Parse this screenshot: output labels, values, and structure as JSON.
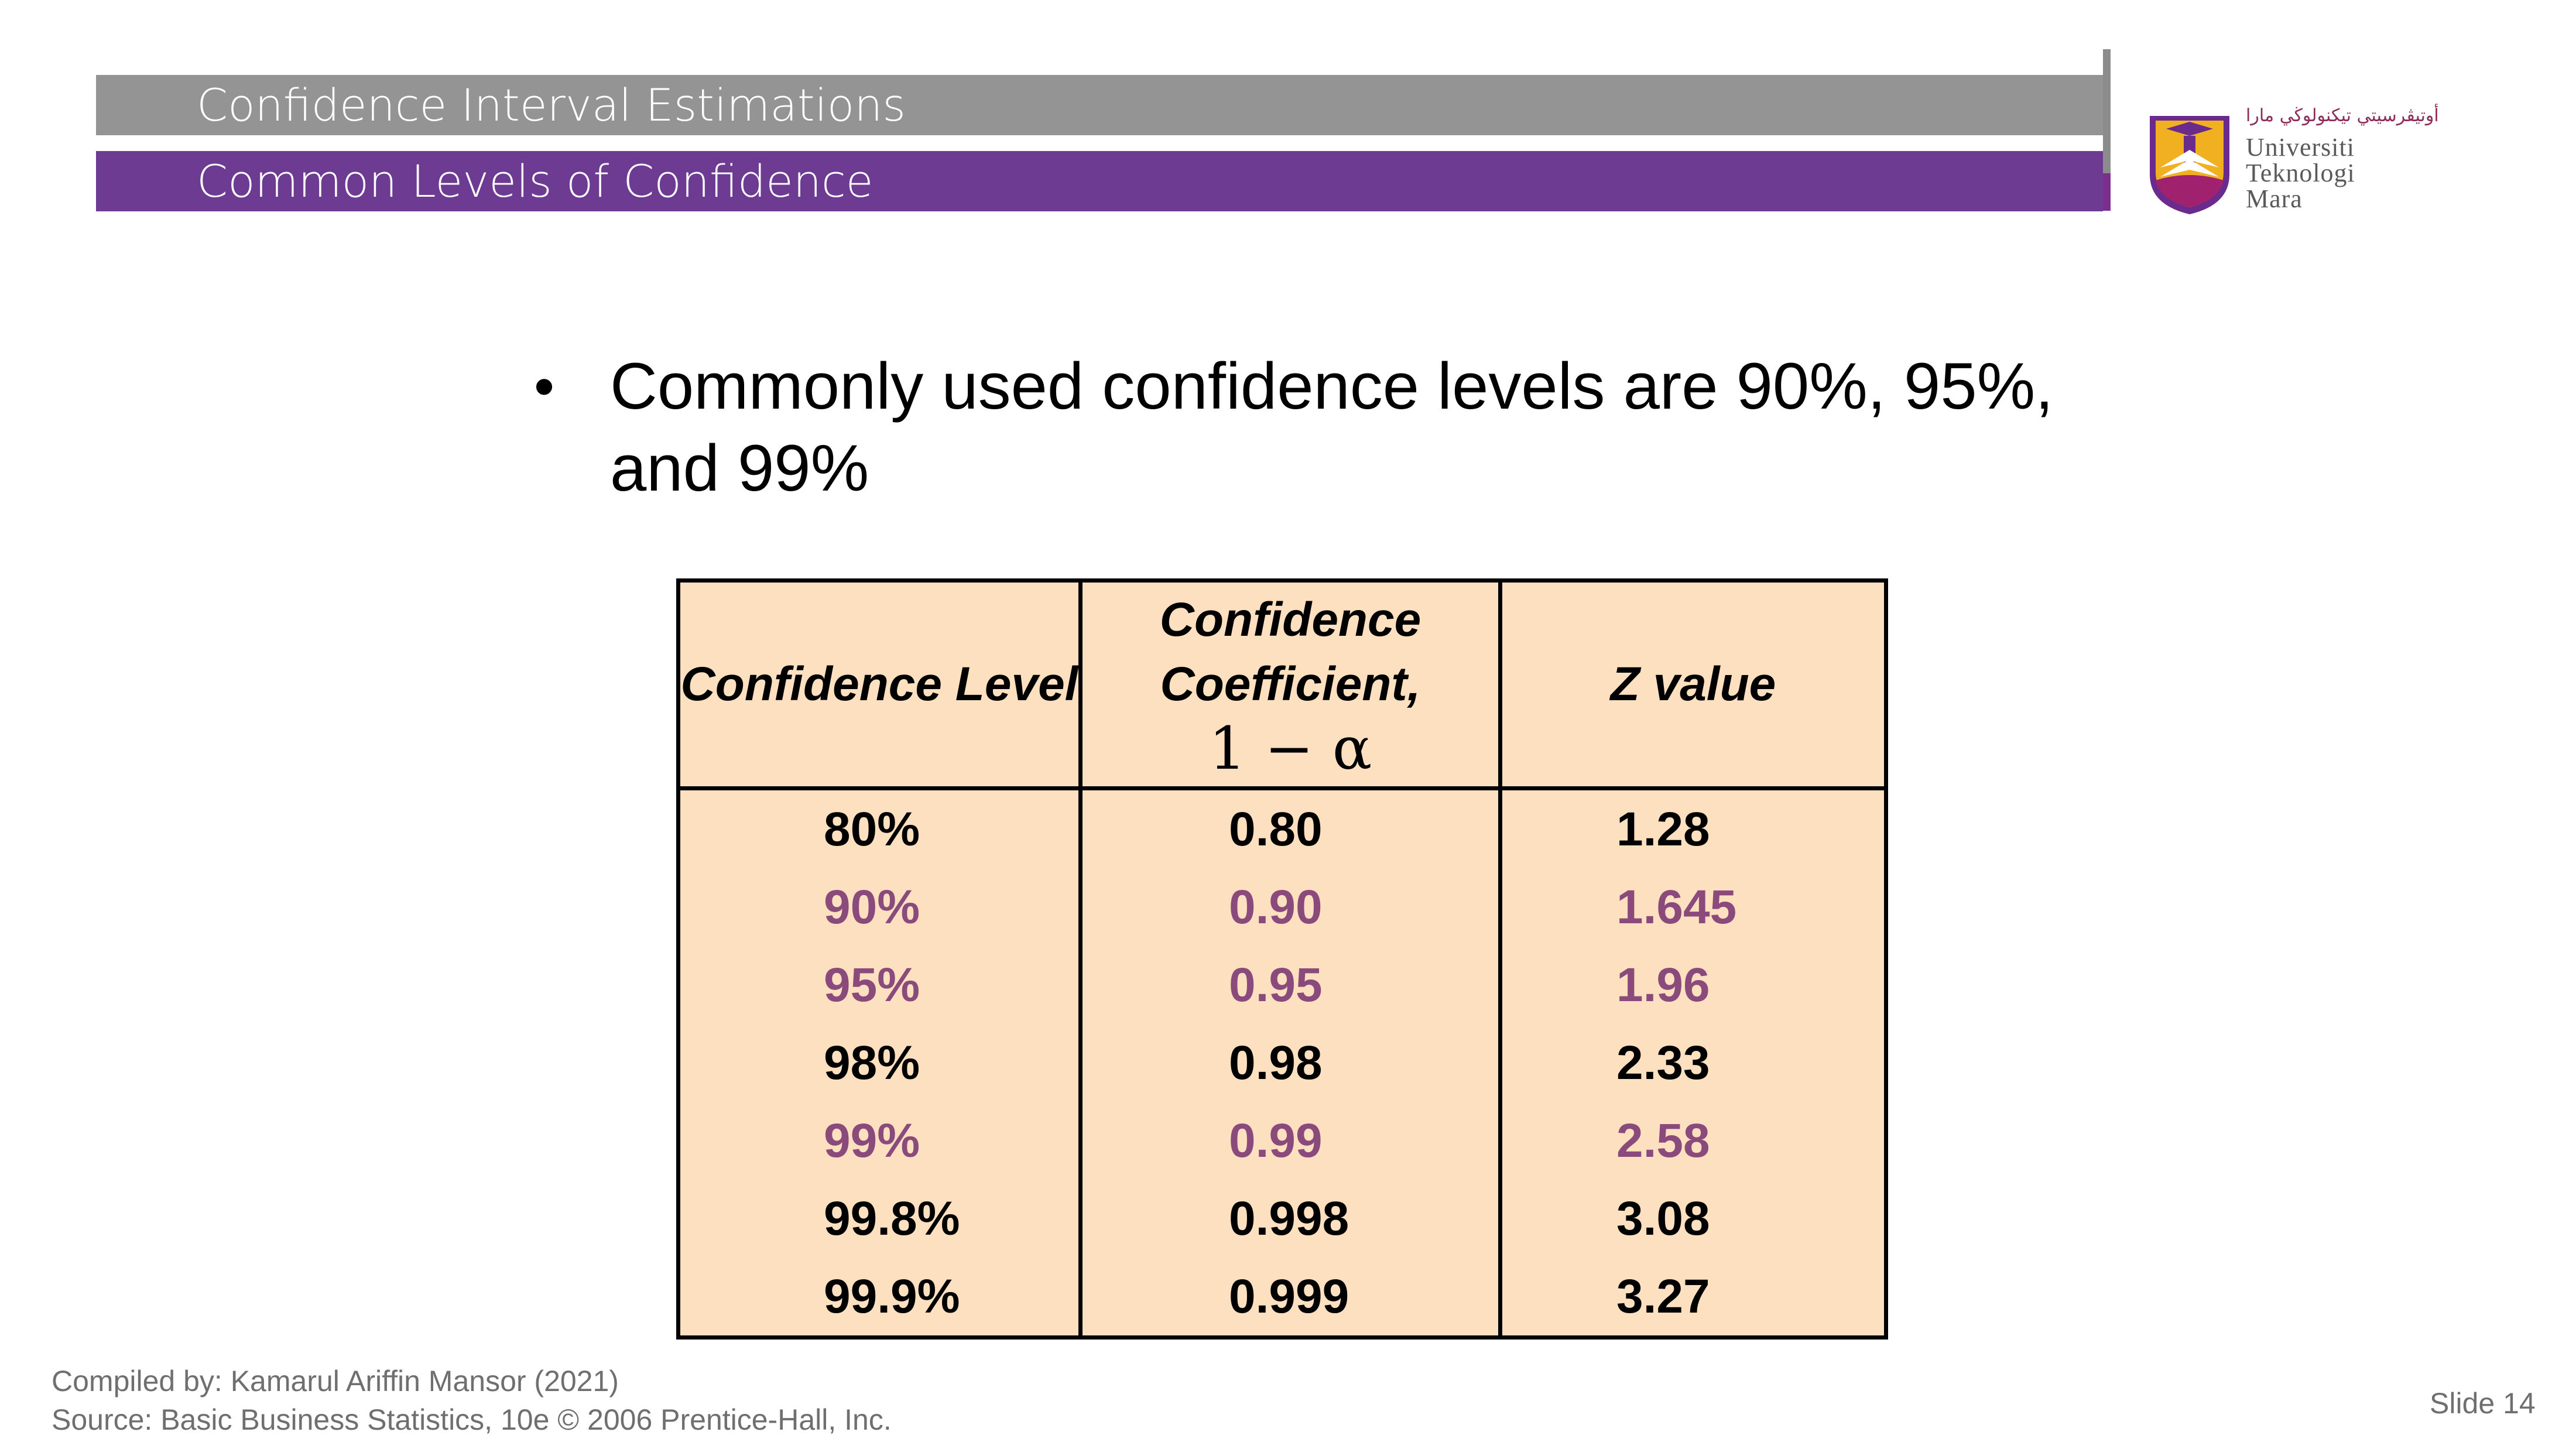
{
  "header": {
    "title": "Confidence Interval Estimations",
    "subtitle": "Common Levels of Confidence"
  },
  "logo": {
    "arabic_text": "أوتيڤرسيتي تيكنولوڬي مارا",
    "word_1": "Universiti",
    "word_2": "Teknologi",
    "word_3": "Mara"
  },
  "bullet": {
    "text": "Commonly used confidence levels are 90%, 95%, and 99%"
  },
  "table": {
    "headers": {
      "level": "Confidence Level",
      "coefficient": "Confidence Coefficient,",
      "coefficient_formula": "1 − α",
      "z": "Z value"
    },
    "rows": [
      {
        "level": "80%",
        "coefficient": "0.80",
        "z": "1.28"
      },
      {
        "level": "90%",
        "coefficient": "0.90",
        "z": "1.645"
      },
      {
        "level": "95%",
        "coefficient": "0.95",
        "z": "1.96"
      },
      {
        "level": "98%",
        "coefficient": "0.98",
        "z": "2.33"
      },
      {
        "level": "99%",
        "coefficient": "0.99",
        "z": "2.58"
      },
      {
        "level": "99.8%",
        "coefficient": "0.998",
        "z": "3.08"
      },
      {
        "level": "99.9%",
        "coefficient": "0.999",
        "z": "3.27"
      }
    ],
    "highlight_color": "#8a4a7c",
    "background_color": "#fce0c0"
  },
  "footer": {
    "compiled_by": "Compiled by: Kamarul Ariffin Mansor (2021)",
    "source": "Source: Basic Business Statistics, 10e © 2006 Prentice-Hall, Inc.",
    "slide_number": "Slide 14"
  },
  "colors": {
    "title_bar": "#949494",
    "subtitle_bar": "#6e3b92"
  }
}
